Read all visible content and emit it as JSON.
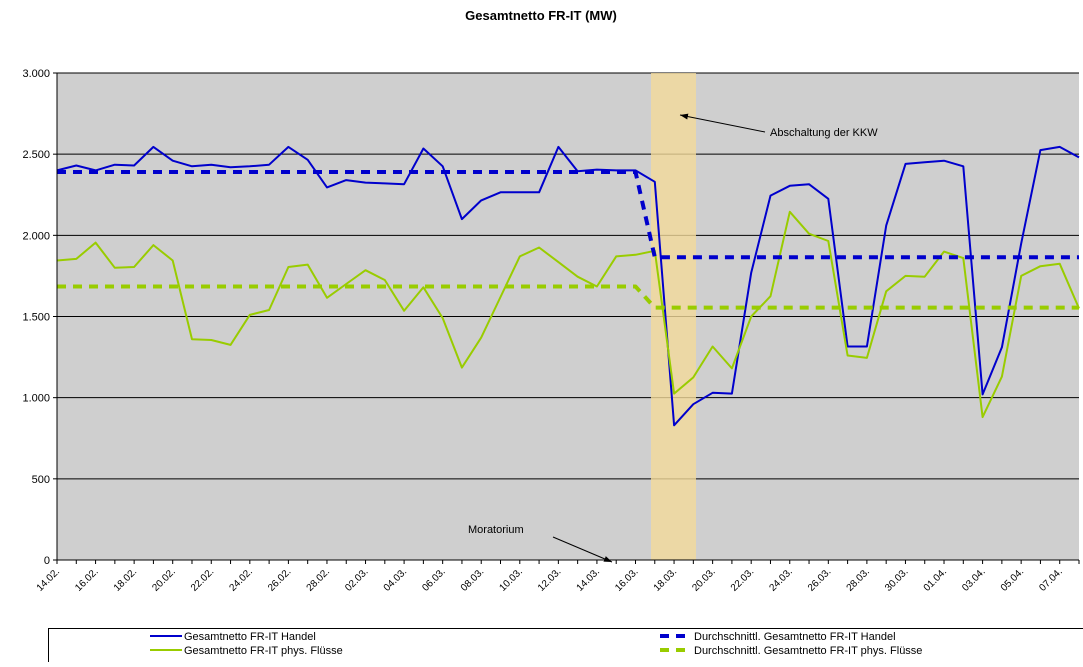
{
  "chart_data": {
    "type": "line",
    "title": "Gesamtnetto FR-IT (MW)",
    "categories": [
      "14.02.",
      null,
      "16.02.",
      null,
      "18.02.",
      null,
      "20.02.",
      null,
      "22.02.",
      null,
      "24.02.",
      null,
      "26.02.",
      null,
      "28.02.",
      null,
      "02.03.",
      null,
      "04.03.",
      null,
      "06.03.",
      null,
      "08.03.",
      null,
      "10.03.",
      null,
      "12.03.",
      null,
      "14.03.",
      null,
      "16.03.",
      null,
      "18.03.",
      null,
      "20.03.",
      null,
      "22.03.",
      null,
      "24.03.",
      null,
      "26.03.",
      null,
      "28.03.",
      null,
      "30.03.",
      null,
      "01.04.",
      null,
      "03.04.",
      null,
      "05.04.",
      null,
      "07.04.",
      null
    ],
    "series": [
      {
        "name": "Gesamtnetto FR-IT Handel",
        "color": "#0000cc",
        "linestyle": "solid",
        "values": [
          2400,
          2430,
          2400,
          2435,
          2430,
          2545,
          2460,
          2425,
          2435,
          2420,
          2425,
          2435,
          2545,
          2465,
          2295,
          2340,
          2325,
          2320,
          2315,
          2535,
          2425,
          2100,
          2215,
          2265,
          2265,
          2265,
          2545,
          2395,
          2405,
          2400,
          2400,
          2330,
          830,
          960,
          1030,
          1025,
          1770,
          2245,
          2305,
          2315,
          2225,
          1315,
          1315,
          2060,
          2440,
          2450,
          2460,
          2425,
          1020,
          1310,
          1950,
          2525,
          2545,
          2480
        ]
      },
      {
        "name": "Gesamtnetto FR-IT phys. Flüsse",
        "color": "#99cc00",
        "linestyle": "solid",
        "values": [
          1845,
          1855,
          1955,
          1800,
          1805,
          1940,
          1845,
          1360,
          1355,
          1325,
          1510,
          1540,
          1805,
          1820,
          1615,
          1700,
          1785,
          1725,
          1535,
          1680,
          1490,
          1185,
          1370,
          1620,
          1870,
          1925,
          1835,
          1745,
          1685,
          1870,
          1880,
          1905,
          1025,
          1125,
          1315,
          1180,
          1500,
          1625,
          2145,
          2010,
          1965,
          1260,
          1245,
          1655,
          1750,
          1745,
          1900,
          1860,
          880,
          1130,
          1750,
          1810,
          1825,
          1550
        ]
      },
      {
        "name": "Durchschnittl. Gesamtnetto FR-IT Handel",
        "color": "#0000cc",
        "linestyle": "dashed",
        "values": [
          2390,
          2390,
          2390,
          2390,
          2390,
          2390,
          2390,
          2390,
          2390,
          2390,
          2390,
          2390,
          2390,
          2390,
          2390,
          2390,
          2390,
          2390,
          2390,
          2390,
          2390,
          2390,
          2390,
          2390,
          2390,
          2390,
          2390,
          2390,
          2390,
          2390,
          2390,
          1865,
          1865,
          1865,
          1865,
          1865,
          1865,
          1865,
          1865,
          1865,
          1865,
          1865,
          1865,
          1865,
          1865,
          1865,
          1865,
          1865,
          1865,
          1865,
          1865,
          1865,
          1865,
          1865
        ]
      },
      {
        "name": "Durchschnittl. Gesamtnetto FR-IT phys. Flüsse",
        "color": "#99cc00",
        "linestyle": "dashed",
        "values": [
          1685,
          1685,
          1685,
          1685,
          1685,
          1685,
          1685,
          1685,
          1685,
          1685,
          1685,
          1685,
          1685,
          1685,
          1685,
          1685,
          1685,
          1685,
          1685,
          1685,
          1685,
          1685,
          1685,
          1685,
          1685,
          1685,
          1685,
          1685,
          1685,
          1685,
          1685,
          1555,
          1555,
          1555,
          1555,
          1555,
          1555,
          1555,
          1555,
          1555,
          1555,
          1555,
          1555,
          1555,
          1555,
          1555,
          1555,
          1555,
          1555,
          1555,
          1555,
          1555,
          1555,
          1555
        ]
      }
    ],
    "ylim": [
      0,
      3000
    ],
    "yticks": [
      0,
      500,
      {
        "value": 1000,
        "label": "1.000"
      },
      {
        "value": 1500,
        "label": "1.500"
      },
      {
        "value": 2000,
        "label": "2.000"
      },
      {
        "value": 2500,
        "label": "2.500"
      },
      {
        "value": 3000,
        "label": "3.000"
      }
    ],
    "grid": true,
    "annotations": [
      "Abschaltung der KKW",
      "Moratorium"
    ]
  }
}
